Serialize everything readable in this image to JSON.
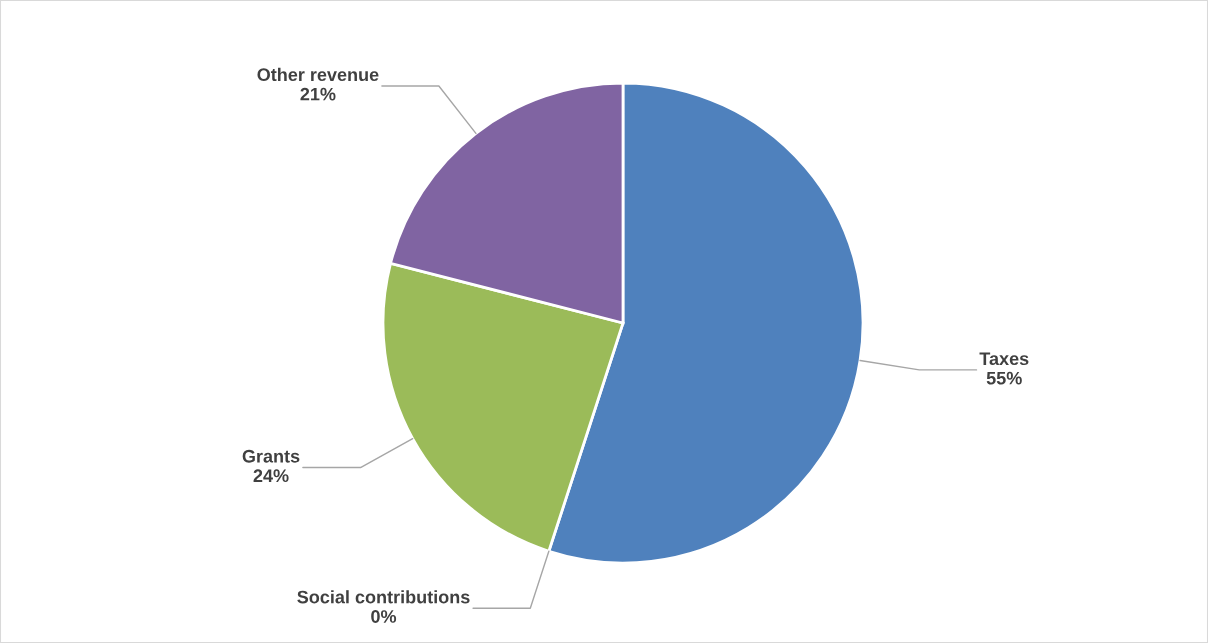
{
  "chart_data": {
    "type": "pie",
    "categories": [
      "Taxes",
      "Social contributions",
      "Grants",
      "Other revenue"
    ],
    "values": [
      55,
      0,
      24,
      21
    ],
    "value_labels": [
      "55%",
      "0%",
      "24%",
      "21%"
    ],
    "colors": [
      "#4f81bd",
      "#c0504d",
      "#9bbb59",
      "#8064a2"
    ],
    "legend": false
  }
}
